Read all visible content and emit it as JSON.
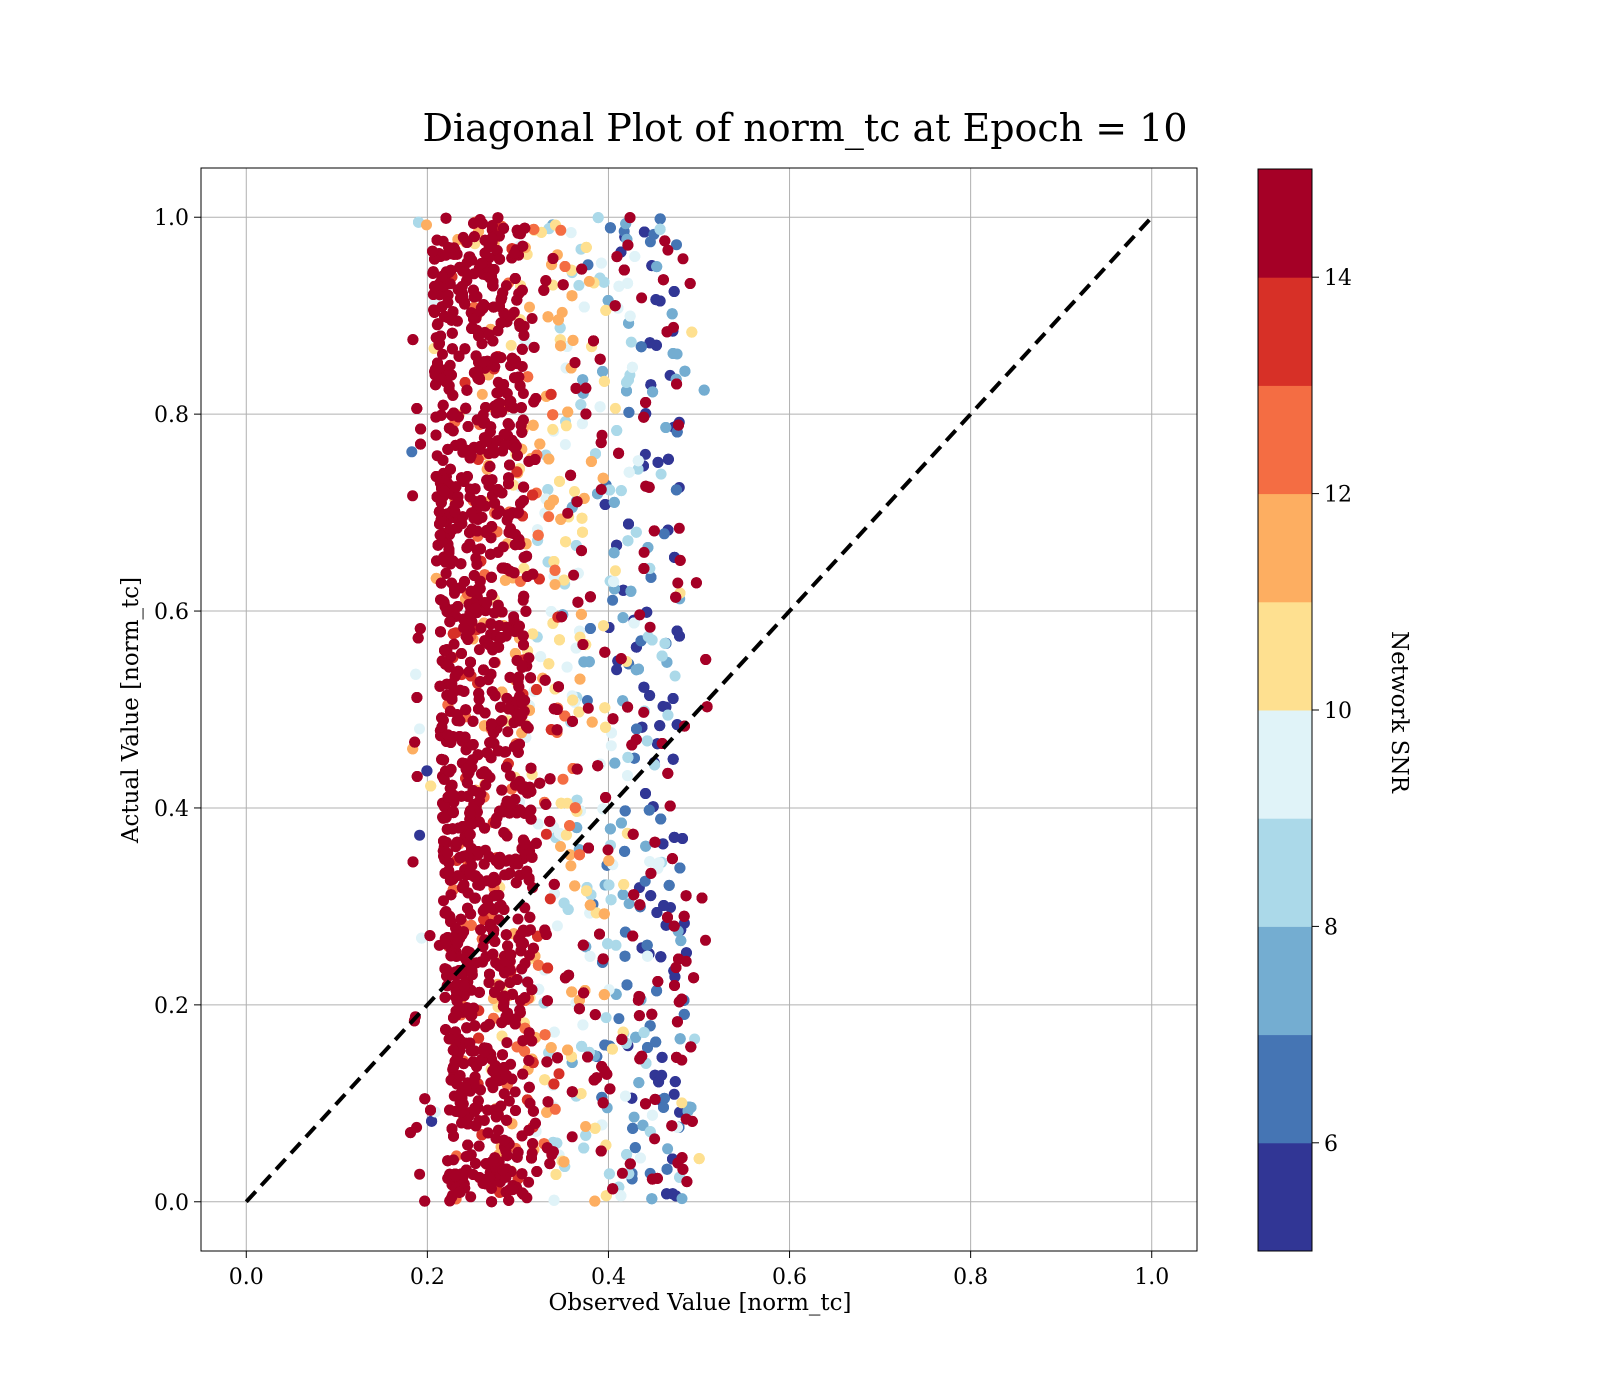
{
  "chart_data": {
    "type": "scatter",
    "title": "Diagonal Plot of norm_tc at Epoch = 10",
    "xlabel": "Observed Value [norm_tc]",
    "ylabel": "Actual Value [norm_tc]",
    "xlim": [
      -0.05,
      1.05
    ],
    "ylim": [
      -0.05,
      1.05
    ],
    "xticks": [
      "0.0",
      "0.2",
      "0.4",
      "0.6",
      "0.8",
      "1.0"
    ],
    "yticks": [
      "0.0",
      "0.2",
      "0.4",
      "0.6",
      "0.8",
      "1.0"
    ],
    "grid": true,
    "reference_line": {
      "from": [
        0,
        0
      ],
      "to": [
        1,
        1
      ],
      "style": "dashed",
      "color": "#000000"
    },
    "colorbar": {
      "label": "Network SNR",
      "range": [
        5,
        15
      ],
      "ticks": [
        "6",
        "8",
        "10",
        "12",
        "14"
      ],
      "levels": [
        5,
        6,
        7,
        8,
        9,
        10,
        11,
        12,
        13,
        14,
        15
      ],
      "colors": [
        "#313695",
        "#4575b4",
        "#74add1",
        "#abd9e9",
        "#e0f3f8",
        "#fee090",
        "#fdae61",
        "#f46d43",
        "#d73027",
        "#a50026"
      ]
    },
    "series": [
      {
        "x_range": [
          0.18,
          0.51
        ],
        "y_range": [
          0.0,
          1.0
        ],
        "color_by": "Network SNR",
        "pattern": "vertical band; highest SNR near x≈0.21–0.30, decreasing SNR toward x≈0.47"
      }
    ]
  }
}
